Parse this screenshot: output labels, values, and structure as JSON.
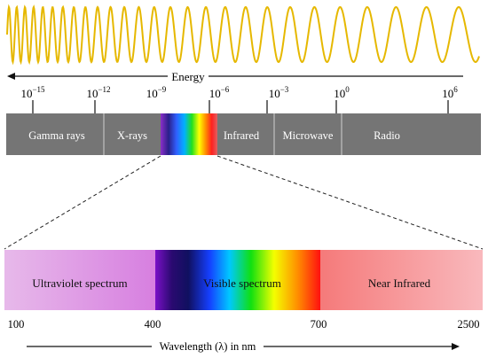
{
  "energy_label": "Energy",
  "wavelength_ticks": [
    {
      "base": "10",
      "exp": "−15"
    },
    {
      "base": "10",
      "exp": "−12"
    },
    {
      "base": "10",
      "exp": "−9"
    },
    {
      "base": "10",
      "exp": "−6"
    },
    {
      "base": "10",
      "exp": "−3"
    },
    {
      "base": "10",
      "exp": "0"
    },
    {
      "base": "10",
      "exp": "6"
    }
  ],
  "spectrum_bands": [
    "Gamma rays",
    "X-rays",
    "Infrared",
    "Microwave",
    "Radio"
  ],
  "zoom_bands": [
    "Ultraviolet spectrum",
    "Visible  spectrum",
    "Near Infrared"
  ],
  "zoom_ticks": [
    "100",
    "400",
    "700",
    "2500"
  ],
  "wavelength_axis_label": "Wavelength (λ) in nm",
  "colors": {
    "wave": "#e6b800",
    "band_bar": "#757575",
    "ultraviolet": "#d98fe0",
    "near_infrared": "#f48a8a"
  }
}
